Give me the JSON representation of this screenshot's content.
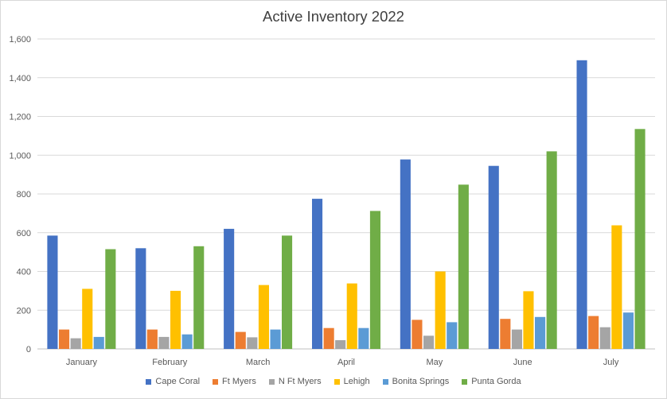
{
  "chart_data": {
    "type": "bar",
    "title": "Active Inventory 2022",
    "xlabel": "",
    "ylabel": "",
    "ylim": [
      0,
      1600
    ],
    "yticks": [
      "0",
      "200",
      "400",
      "600",
      "800",
      "1,000",
      "1,200",
      "1,400",
      "1,600"
    ],
    "ytick_values": [
      0,
      200,
      400,
      600,
      800,
      1000,
      1200,
      1400,
      1600
    ],
    "grid": true,
    "legend_position": "bottom",
    "categories": [
      "January",
      "February",
      "March",
      "April",
      "May",
      "June",
      "July"
    ],
    "series": [
      {
        "name": "Cape Coral",
        "color": "#4472c4",
        "values": [
          585,
          520,
          620,
          775,
          978,
          945,
          1490
        ]
      },
      {
        "name": "Ft Myers",
        "color": "#ed7d31",
        "values": [
          100,
          100,
          88,
          108,
          150,
          155,
          170
        ]
      },
      {
        "name": "N Ft Myers",
        "color": "#a5a5a5",
        "values": [
          55,
          62,
          60,
          45,
          68,
          100,
          112
        ]
      },
      {
        "name": "Lehigh",
        "color": "#ffc000",
        "values": [
          310,
          300,
          330,
          338,
          400,
          298,
          638
        ]
      },
      {
        "name": "Bonita Springs",
        "color": "#5b9bd5",
        "values": [
          62,
          75,
          100,
          108,
          138,
          165,
          188
        ]
      },
      {
        "name": "Punta Gorda",
        "color": "#70ad47",
        "values": [
          515,
          530,
          585,
          712,
          848,
          1020,
          1135
        ]
      }
    ]
  }
}
